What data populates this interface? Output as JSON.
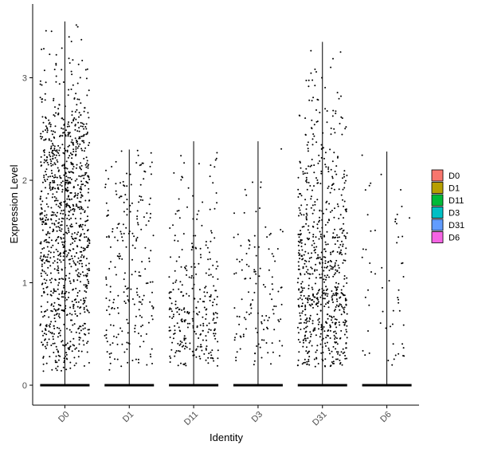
{
  "chart_data": {
    "type": "violin",
    "title": "",
    "xlabel": "Identity",
    "ylabel": "Expression Level",
    "categories": [
      "D0",
      "D1",
      "D11",
      "D3",
      "D31",
      "D6"
    ],
    "ylim": [
      -0.18,
      3.68
    ],
    "yticks": [
      0,
      1,
      2,
      3
    ],
    "grid": false,
    "legend_position": "right",
    "legend": [
      {
        "label": "D0",
        "color": "#F8766D"
      },
      {
        "label": "D1",
        "color": "#B79F00"
      },
      {
        "label": "D11",
        "color": "#00BA38"
      },
      {
        "label": "D3",
        "color": "#00BFC4"
      },
      {
        "label": "D31",
        "color": "#619CFF"
      },
      {
        "label": "D6",
        "color": "#F564E3"
      }
    ],
    "series": [
      {
        "category": "D0",
        "max": 3.55,
        "points_nonzero_est": 1100,
        "density": [
          [
            0.15,
            0.35
          ],
          [
            0.4,
            0.6
          ],
          [
            0.7,
            0.75
          ],
          [
            1.0,
            0.8
          ],
          [
            1.3,
            0.9
          ],
          [
            1.6,
            0.95
          ],
          [
            1.9,
            1.0
          ],
          [
            2.2,
            1.0
          ],
          [
            2.5,
            0.7
          ],
          [
            2.8,
            0.3
          ],
          [
            3.1,
            0.1
          ],
          [
            3.55,
            0.02
          ]
        ]
      },
      {
        "category": "D1",
        "max": 2.3,
        "points_nonzero_est": 230,
        "density": [
          [
            0.15,
            0.3
          ],
          [
            0.4,
            0.6
          ],
          [
            0.7,
            0.7
          ],
          [
            1.0,
            0.65
          ],
          [
            1.3,
            0.55
          ],
          [
            1.6,
            0.5
          ],
          [
            1.9,
            0.4
          ],
          [
            2.1,
            0.25
          ],
          [
            2.3,
            0.05
          ]
        ]
      },
      {
        "category": "D11",
        "max": 2.38,
        "points_nonzero_est": 300,
        "density": [
          [
            0.2,
            0.5
          ],
          [
            0.4,
            0.85
          ],
          [
            0.6,
            0.9
          ],
          [
            0.8,
            0.75
          ],
          [
            1.0,
            0.5
          ],
          [
            1.3,
            0.35
          ],
          [
            1.6,
            0.2
          ],
          [
            2.0,
            0.15
          ],
          [
            2.38,
            0.03
          ]
        ]
      },
      {
        "category": "D3",
        "max": 2.38,
        "points_nonzero_est": 130,
        "density": [
          [
            0.2,
            0.45
          ],
          [
            0.4,
            0.65
          ],
          [
            0.6,
            0.55
          ],
          [
            0.9,
            0.45
          ],
          [
            1.2,
            0.35
          ],
          [
            1.5,
            0.25
          ],
          [
            1.9,
            0.15
          ],
          [
            2.38,
            0.03
          ]
        ]
      },
      {
        "category": "D31",
        "max": 3.35,
        "points_nonzero_est": 750,
        "density": [
          [
            0.2,
            0.55
          ],
          [
            0.5,
            0.9
          ],
          [
            0.8,
            1.0
          ],
          [
            1.1,
            0.85
          ],
          [
            1.4,
            0.6
          ],
          [
            1.7,
            0.45
          ],
          [
            2.0,
            0.4
          ],
          [
            2.3,
            0.3
          ],
          [
            2.6,
            0.2
          ],
          [
            2.9,
            0.08
          ],
          [
            3.35,
            0.02
          ]
        ]
      },
      {
        "category": "D6",
        "max": 2.28,
        "points_nonzero_est": 60,
        "density": [
          [
            0.2,
            0.4
          ],
          [
            0.5,
            0.55
          ],
          [
            0.8,
            0.5
          ],
          [
            1.2,
            0.4
          ],
          [
            1.6,
            0.3
          ],
          [
            2.0,
            0.25
          ],
          [
            2.28,
            0.05
          ]
        ]
      }
    ]
  }
}
